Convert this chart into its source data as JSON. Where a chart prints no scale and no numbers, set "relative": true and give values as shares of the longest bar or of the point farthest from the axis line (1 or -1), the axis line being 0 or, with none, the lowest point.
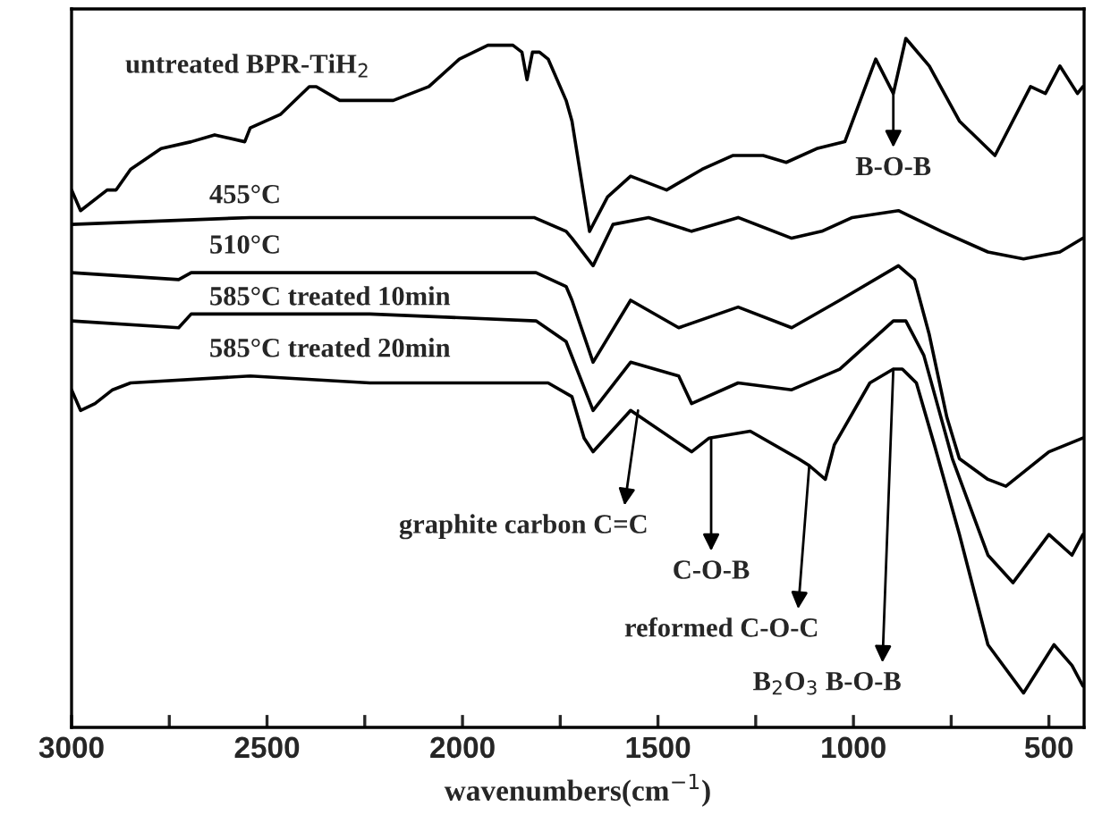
{
  "chart_data": {
    "type": "line",
    "relative": true,
    "xlabel": "wavenumbers(cm$^{−1}$)",
    "xlim": [
      3000,
      410
    ],
    "xticks": [
      3000,
      {
        "value": 2750,
        "label": null
      },
      2500,
      {
        "value": 2250,
        "label": null
      },
      2000,
      {
        "value": 1750,
        "label": null
      },
      1500,
      {
        "value": 1250,
        "label": null
      },
      1000,
      {
        "value": 750,
        "label": null
      },
      500
    ],
    "tick_labels": "x",
    "grid": false,
    "legend": false,
    "marker": "none",
    "line_style": "solid",
    "series": [
      {
        "name": "untreated BPR-TiH$_{2}$",
        "color": "#000000",
        "x": [
          3000,
          2977,
          2909,
          2886,
          2849,
          2771,
          2694,
          2634,
          2557,
          2543,
          2465,
          2392,
          2374,
          2314,
          2177,
          2086,
          2008,
          1935,
          1871,
          1848,
          1835,
          1821,
          1803,
          1781,
          1735,
          1720,
          1675,
          1629,
          1570,
          1478,
          1387,
          1309,
          1231,
          1172,
          1094,
          1022,
          943,
          898,
          866,
          806,
          729,
          638,
          547,
          509,
          472,
          427,
          413
        ],
        "values": [
          0.78,
          0.75,
          0.78,
          0.78,
          0.81,
          0.84,
          0.85,
          0.86,
          0.85,
          0.87,
          0.89,
          0.93,
          0.93,
          0.91,
          0.91,
          0.93,
          0.97,
          0.99,
          0.99,
          0.98,
          0.94,
          0.98,
          0.98,
          0.97,
          0.91,
          0.88,
          0.72,
          0.77,
          0.8,
          0.78,
          0.81,
          0.83,
          0.83,
          0.82,
          0.84,
          0.85,
          0.97,
          0.92,
          1.0,
          0.96,
          0.88,
          0.83,
          0.93,
          0.92,
          0.96,
          0.92,
          0.93
        ]
      },
      {
        "name": "455°C",
        "color": "#000000",
        "x": [
          3000,
          2543,
          2209,
          1817,
          1735,
          1720,
          1666,
          1615,
          1524,
          1414,
          1295,
          1158,
          1081,
          1003,
          885,
          775,
          656,
          565,
          472,
          413
        ],
        "values": [
          0.73,
          0.74,
          0.74,
          0.74,
          0.72,
          0.71,
          0.67,
          0.73,
          0.74,
          0.72,
          0.74,
          0.71,
          0.72,
          0.74,
          0.75,
          0.72,
          0.69,
          0.68,
          0.69,
          0.71
        ]
      },
      {
        "name": "510°C",
        "color": "#000000",
        "x": [
          3000,
          2726,
          2694,
          2237,
          1812,
          1735,
          1720,
          1666,
          1570,
          1447,
          1295,
          1158,
          1035,
          885,
          844,
          806,
          761,
          729,
          656,
          610,
          500,
          413
        ],
        "values": [
          0.66,
          0.65,
          0.66,
          0.66,
          0.66,
          0.64,
          0.62,
          0.53,
          0.62,
          0.58,
          0.61,
          0.58,
          0.62,
          0.67,
          0.65,
          0.57,
          0.45,
          0.39,
          0.36,
          0.35,
          0.4,
          0.42
        ]
      },
      {
        "name": "585°C treated 10min",
        "color": "#000000",
        "x": [
          3000,
          2726,
          2694,
          2237,
          1812,
          1735,
          1666,
          1570,
          1447,
          1414,
          1295,
          1158,
          1035,
          898,
          866,
          820,
          747,
          656,
          592,
          500,
          441,
          413
        ],
        "values": [
          0.59,
          0.58,
          0.6,
          0.6,
          0.59,
          0.56,
          0.46,
          0.53,
          0.51,
          0.47,
          0.5,
          0.49,
          0.52,
          0.59,
          0.59,
          0.54,
          0.39,
          0.25,
          0.21,
          0.28,
          0.25,
          0.28
        ]
      },
      {
        "name": "585°C treated 20min",
        "color": "#000000",
        "x": [
          3000,
          2977,
          2940,
          2895,
          2849,
          2543,
          2237,
          1781,
          1720,
          1689,
          1666,
          1570,
          1414,
          1369,
          1264,
          1141,
          1113,
          1072,
          1049,
          958,
          898,
          875,
          839,
          793,
          729,
          656,
          565,
          487,
          441,
          413
        ],
        "values": [
          0.49,
          0.46,
          0.47,
          0.49,
          0.5,
          0.51,
          0.5,
          0.5,
          0.48,
          0.42,
          0.4,
          0.46,
          0.4,
          0.42,
          0.43,
          0.39,
          0.38,
          0.36,
          0.41,
          0.5,
          0.52,
          0.52,
          0.5,
          0.41,
          0.28,
          0.12,
          0.05,
          0.12,
          0.09,
          0.06
        ]
      }
    ],
    "annotations": [
      {
        "text": "B-O-B",
        "x": 898,
        "y": 0.92
      },
      {
        "text": "graphite carbon C=C",
        "x": 1551,
        "y": 0.46
      },
      {
        "text": "C-O-B",
        "x": 1364,
        "y": 0.42
      },
      {
        "text": "reformed C-O-C",
        "x": 1113,
        "y": 0.38
      },
      {
        "text": "B$_{2}$O$_{3}$ B-O-B",
        "x": 898,
        "y": 0.52
      }
    ]
  }
}
